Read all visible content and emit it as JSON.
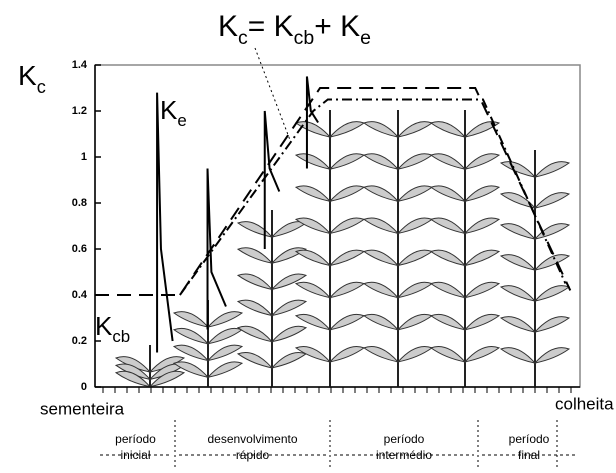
{
  "chart_data": {
    "type": "line",
    "equation": [
      "K",
      "c",
      "= K",
      "cb",
      "+ K",
      "e"
    ],
    "y_label": [
      "K",
      "c"
    ],
    "ke_label": [
      "K",
      "e"
    ],
    "kcb_label": [
      "K",
      "cb"
    ],
    "start_label": "sementeira",
    "end_label": "colheita",
    "stages": [
      [
        "período",
        "inicial"
      ],
      [
        "desenvolvimento",
        "rápido"
      ],
      [
        "período",
        "intermédio"
      ],
      [
        "período",
        "final"
      ]
    ],
    "xlim": [
      0,
      100
    ],
    "ylim": [
      0,
      1.4
    ],
    "yticks": [
      0,
      0.2,
      0.4,
      0.6,
      0.8,
      1,
      1.2,
      1.4
    ],
    "series": [
      {
        "color": "#000000",
        "dash": "14 8",
        "x": [
          0,
          17.5,
          46.4,
          78.4,
          98
        ],
        "values": [
          0.4,
          0.4,
          1.3,
          1.3,
          0.42
        ]
      },
      {
        "color": "#000000",
        "dash": "10 4 2 4",
        "x": [
          17.5,
          45,
          48,
          80,
          97
        ],
        "values": [
          0.4,
          1.2,
          1.25,
          1.25,
          0.45
        ]
      },
      {
        "color": "#000000",
        "dash": "none",
        "x": [
          12.8,
          12.8,
          13.6,
          16,
          20,
          23.2,
          23.2,
          24,
          27,
          30,
          35,
          35,
          36,
          38,
          40,
          43.7,
          43.7,
          44.5,
          46
        ],
        "values": [
          0.15,
          1.28,
          0.6,
          0.2,
          null,
          0.25,
          0.95,
          0.5,
          0.35,
          null,
          0.6,
          1.2,
          0.95,
          0.85,
          null,
          0.95,
          1.35,
          1.2,
          1.15
        ]
      }
    ]
  }
}
